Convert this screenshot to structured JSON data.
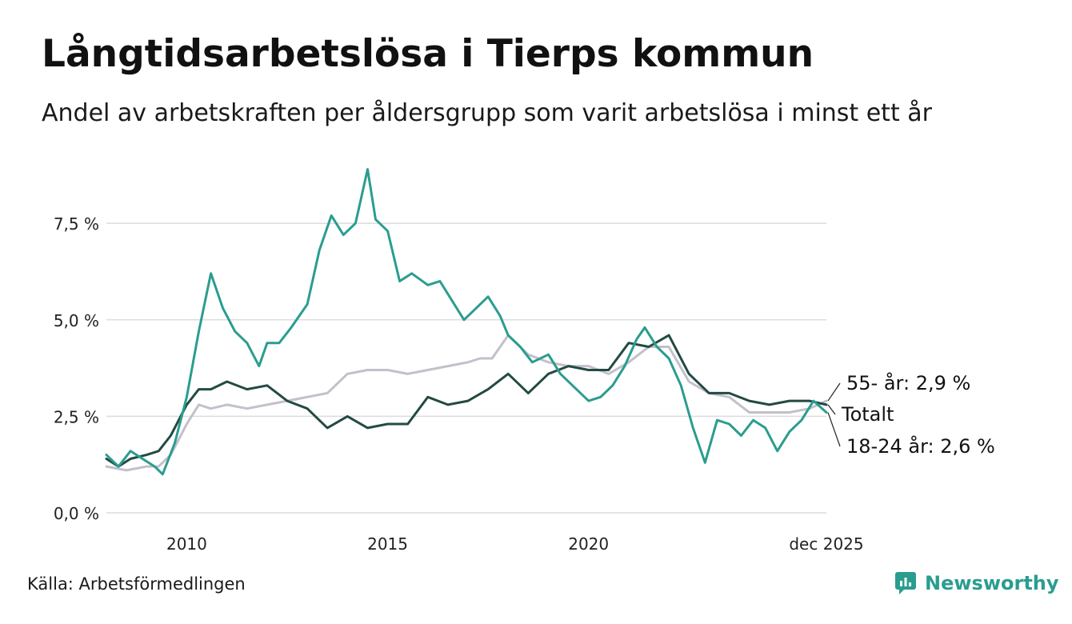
{
  "header": {
    "title": "Långtidsarbetslösa i Tierps kommun",
    "subtitle": "Andel av arbetskraften per åldersgrupp som varit arbetslösa i minst ett år"
  },
  "footer": {
    "source": "Källa: Arbetsförmedlingen",
    "brand": "Newsworthy",
    "brand_color": "#2a9d8f"
  },
  "chart_data": {
    "type": "line",
    "title": "Långtidsarbetslösa i Tierps kommun",
    "xlabel": "",
    "ylabel": "",
    "xlim": [
      2008.0,
      2025.92
    ],
    "ylim": [
      0,
      9
    ],
    "y_ticks": [
      0,
      2.5,
      5,
      7.5
    ],
    "y_tick_labels": [
      "0,0 %",
      "2,5 %",
      "5,0 %",
      "7,5 %"
    ],
    "x_ticks": [
      2010,
      2015,
      2020,
      2025.92
    ],
    "x_tick_labels": [
      "2010",
      "2015",
      "2020",
      "dec 2025"
    ],
    "grid": true,
    "series": [
      {
        "name": "55- år",
        "color": "#c3c0cb",
        "end_label": "55- år: 2,9 %",
        "x": [
          2008.0,
          2008.5,
          2009.0,
          2009.3,
          2009.6,
          2010.0,
          2010.3,
          2010.6,
          2011.0,
          2011.5,
          2012.0,
          2012.5,
          2013.0,
          2013.5,
          2014.0,
          2014.5,
          2015.0,
          2015.5,
          2016.0,
          2016.5,
          2017.0,
          2017.3,
          2017.6,
          2017.8,
          2018.0,
          2018.5,
          2019.0,
          2019.5,
          2020.0,
          2020.5,
          2021.0,
          2021.5,
          2022.0,
          2022.5,
          2023.0,
          2023.5,
          2024.0,
          2024.5,
          2025.0,
          2025.5,
          2025.92
        ],
        "values": [
          1.2,
          1.1,
          1.2,
          1.2,
          1.5,
          2.3,
          2.8,
          2.7,
          2.8,
          2.7,
          2.8,
          2.9,
          3.0,
          3.1,
          3.6,
          3.7,
          3.7,
          3.6,
          3.7,
          3.8,
          3.9,
          4.0,
          4.0,
          4.3,
          4.6,
          4.1,
          3.9,
          3.8,
          3.8,
          3.6,
          3.9,
          4.3,
          4.3,
          3.4,
          3.1,
          3.0,
          2.6,
          2.6,
          2.6,
          2.7,
          2.9
        ]
      },
      {
        "name": "Totalt",
        "color": "#234a43",
        "end_label": "Totalt",
        "x": [
          2008.0,
          2008.3,
          2008.6,
          2009.0,
          2009.3,
          2009.6,
          2010.0,
          2010.3,
          2010.6,
          2011.0,
          2011.5,
          2012.0,
          2012.5,
          2013.0,
          2013.5,
          2014.0,
          2014.5,
          2015.0,
          2015.5,
          2016.0,
          2016.5,
          2017.0,
          2017.5,
          2018.0,
          2018.5,
          2019.0,
          2019.5,
          2020.0,
          2020.5,
          2021.0,
          2021.5,
          2022.0,
          2022.5,
          2023.0,
          2023.5,
          2024.0,
          2024.5,
          2025.0,
          2025.5,
          2025.92
        ],
        "values": [
          1.4,
          1.2,
          1.4,
          1.5,
          1.6,
          2.0,
          2.8,
          3.2,
          3.2,
          3.4,
          3.2,
          3.3,
          2.9,
          2.7,
          2.2,
          2.5,
          2.2,
          2.3,
          2.3,
          3.0,
          2.8,
          2.9,
          3.2,
          3.6,
          3.1,
          3.6,
          3.8,
          3.7,
          3.7,
          4.4,
          4.3,
          4.6,
          3.6,
          3.1,
          3.1,
          2.9,
          2.8,
          2.9,
          2.9,
          2.8
        ]
      },
      {
        "name": "18-24 år",
        "color": "#2a9d8f",
        "end_label": "18-24 år: 2,6 %",
        "x": [
          2008.0,
          2008.3,
          2008.6,
          2008.9,
          2009.2,
          2009.4,
          2009.7,
          2010.0,
          2010.3,
          2010.6,
          2010.9,
          2011.2,
          2011.5,
          2011.8,
          2012.0,
          2012.3,
          2012.6,
          2013.0,
          2013.3,
          2013.6,
          2013.9,
          2014.2,
          2014.5,
          2014.7,
          2015.0,
          2015.3,
          2015.6,
          2016.0,
          2016.3,
          2016.6,
          2016.9,
          2017.2,
          2017.5,
          2017.8,
          2018.0,
          2018.3,
          2018.6,
          2019.0,
          2019.3,
          2019.6,
          2020.0,
          2020.3,
          2020.6,
          2020.9,
          2021.2,
          2021.4,
          2021.7,
          2022.0,
          2022.3,
          2022.6,
          2022.9,
          2023.2,
          2023.5,
          2023.8,
          2024.1,
          2024.4,
          2024.7,
          2025.0,
          2025.3,
          2025.6,
          2025.92
        ],
        "values": [
          1.5,
          1.2,
          1.6,
          1.4,
          1.2,
          1.0,
          1.8,
          3.0,
          4.7,
          6.2,
          5.3,
          4.7,
          4.4,
          3.8,
          4.4,
          4.4,
          4.8,
          5.4,
          6.8,
          7.7,
          7.2,
          7.5,
          8.9,
          7.6,
          7.3,
          6.0,
          6.2,
          5.9,
          6.0,
          5.5,
          5.0,
          5.3,
          5.6,
          5.1,
          4.6,
          4.3,
          3.9,
          4.1,
          3.6,
          3.3,
          2.9,
          3.0,
          3.3,
          3.8,
          4.5,
          4.8,
          4.3,
          4.0,
          3.3,
          2.2,
          1.3,
          2.4,
          2.3,
          2.0,
          2.4,
          2.2,
          1.6,
          2.1,
          2.4,
          2.9,
          2.6
        ]
      }
    ]
  }
}
